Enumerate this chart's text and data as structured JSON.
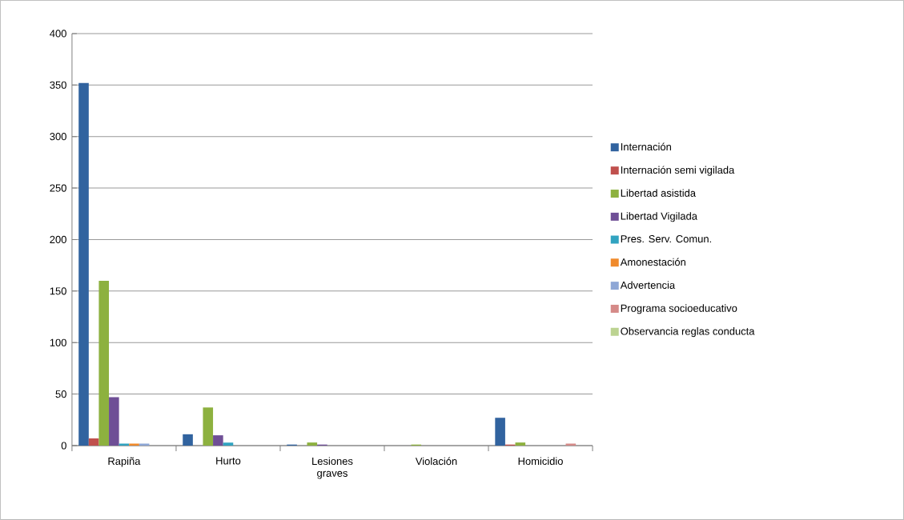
{
  "chart_data": {
    "type": "bar",
    "categories": [
      "Rapiña",
      "Hurto",
      "Lesiones graves",
      "Violación",
      "Homicidio"
    ],
    "series": [
      {
        "name": "Internación",
        "color": "#31639f",
        "values": [
          352,
          11,
          1,
          0,
          27
        ]
      },
      {
        "name": "Internación semi vigilada",
        "color": "#c0504d",
        "values": [
          7,
          0,
          0,
          0,
          1
        ]
      },
      {
        "name": "Libertad asistida",
        "color": "#8db13f",
        "values": [
          160,
          37,
          3,
          1,
          3
        ]
      },
      {
        "name": "Libertad Vigilada",
        "color": "#6f4f96",
        "values": [
          47,
          10,
          1,
          0,
          0
        ]
      },
      {
        "name": "Pres. Serv. Comun.",
        "color": "#31a3c0",
        "values": [
          2,
          3,
          0,
          0,
          0
        ]
      },
      {
        "name": "Amonestación",
        "color": "#f08a2c",
        "values": [
          2,
          0,
          0,
          0,
          0
        ]
      },
      {
        "name": "Advertencia",
        "color": "#8ea7d6",
        "values": [
          2,
          0,
          0,
          0,
          0
        ]
      },
      {
        "name": "Programa socioeducativo",
        "color": "#d58a88",
        "values": [
          0,
          0,
          0,
          0,
          2
        ]
      },
      {
        "name": "Observancia reglas conducta",
        "color": "#bcd391",
        "values": [
          0,
          0,
          0,
          0,
          0
        ]
      }
    ],
    "ylim": [
      0,
      400
    ],
    "yticks": [
      0,
      50,
      100,
      150,
      200,
      250,
      300,
      350,
      400
    ],
    "grid": "y",
    "legend": "right"
  }
}
